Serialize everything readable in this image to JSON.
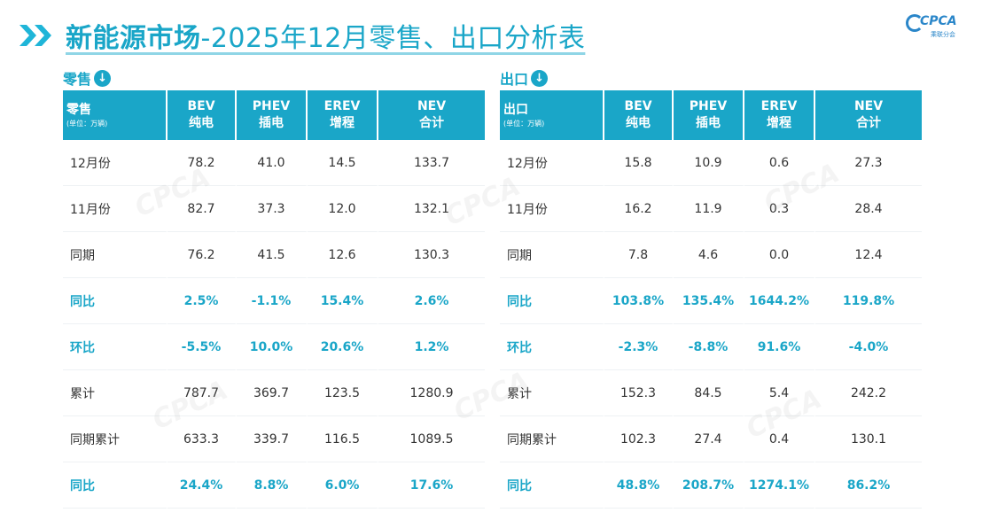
{
  "title": {
    "prefix": "新能源市场",
    "suffix": "-2025年12月零售、出口分析表"
  },
  "logo": {
    "text": "CPCA",
    "sub": "乘联分会"
  },
  "colors": {
    "accent": "#1aa6c8",
    "chevron": "#1fb5d8"
  },
  "retail": {
    "label": "零售",
    "icon": "arrow-down-circle-icon",
    "header": {
      "first": "零售",
      "unit": "(单位：万辆)",
      "cols": [
        {
          "code": "BEV",
          "name": "纯电"
        },
        {
          "code": "PHEV",
          "name": "插电"
        },
        {
          "code": "EREV",
          "name": "增程"
        },
        {
          "code": "NEV",
          "name": "合计"
        }
      ]
    },
    "rows": [
      {
        "label": "12月份",
        "values": [
          "78.2",
          "41.0",
          "14.5",
          "133.7"
        ]
      },
      {
        "label": "11月份",
        "values": [
          "82.7",
          "37.3",
          "12.0",
          "132.1"
        ]
      },
      {
        "label": "同期",
        "values": [
          "76.2",
          "41.5",
          "12.6",
          "130.3"
        ]
      },
      {
        "label": "同比",
        "values": [
          "2.5%",
          "-1.1%",
          "15.4%",
          "2.6%"
        ]
      },
      {
        "label": "环比",
        "values": [
          "-5.5%",
          "10.0%",
          "20.6%",
          "1.2%"
        ]
      },
      {
        "label": "累计",
        "values": [
          "787.7",
          "369.7",
          "123.5",
          "1280.9"
        ]
      },
      {
        "label": "同期累计",
        "values": [
          "633.3",
          "339.7",
          "116.5",
          "1089.5"
        ]
      },
      {
        "label": "同比",
        "values": [
          "24.4%",
          "8.8%",
          "6.0%",
          "17.6%"
        ]
      }
    ]
  },
  "export": {
    "label": "出口",
    "icon": "arrow-down-circle-icon",
    "header": {
      "first": "出口",
      "unit": "(单位：万辆)",
      "cols": [
        {
          "code": "BEV",
          "name": "纯电"
        },
        {
          "code": "PHEV",
          "name": "插电"
        },
        {
          "code": "EREV",
          "name": "增程"
        },
        {
          "code": "NEV",
          "name": "合计"
        }
      ]
    },
    "rows": [
      {
        "label": "12月份",
        "values": [
          "15.8",
          "10.9",
          "0.6",
          "27.3"
        ]
      },
      {
        "label": "11月份",
        "values": [
          "16.2",
          "11.9",
          "0.3",
          "28.4"
        ]
      },
      {
        "label": "同期",
        "values": [
          "7.8",
          "4.6",
          "0.0",
          "12.4"
        ]
      },
      {
        "label": "同比",
        "values": [
          "103.8%",
          "135.4%",
          "1644.2%",
          "119.8%"
        ]
      },
      {
        "label": "环比",
        "values": [
          "-2.3%",
          "-8.8%",
          "91.6%",
          "-4.0%"
        ]
      },
      {
        "label": "累计",
        "values": [
          "152.3",
          "84.5",
          "5.4",
          "242.2"
        ]
      },
      {
        "label": "同期累计",
        "values": [
          "102.3",
          "27.4",
          "0.4",
          "130.1"
        ]
      },
      {
        "label": "同比",
        "values": [
          "48.8%",
          "208.7%",
          "1274.1%",
          "86.2%"
        ]
      }
    ]
  }
}
